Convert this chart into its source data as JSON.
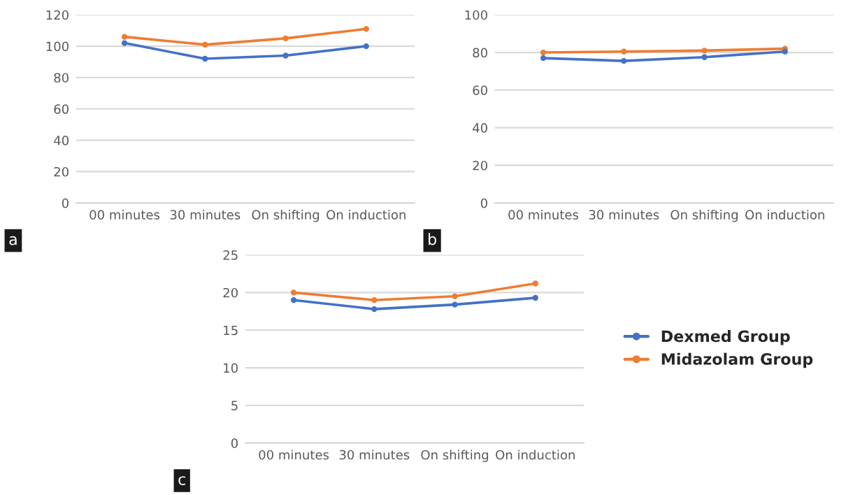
{
  "chart_data": [
    {
      "type": "line",
      "categories": [
        "00 minutes",
        "30 minutes",
        "On shifting",
        "On induction"
      ],
      "ylim": [
        0,
        120
      ],
      "yticks": [
        0,
        20,
        40,
        60,
        80,
        100,
        120
      ],
      "grid": "y",
      "marker": "circle",
      "legend": false,
      "annotations": [
        "a"
      ],
      "series": [
        {
          "color": "#4472c4",
          "values": [
            102,
            92,
            94,
            100
          ]
        },
        {
          "color": "#ed7d31",
          "values": [
            106,
            101,
            105,
            111
          ]
        }
      ]
    },
    {
      "type": "line",
      "categories": [
        "00 minutes",
        "30 minutes",
        "On shifting",
        "On induction"
      ],
      "ylim": [
        0,
        100
      ],
      "yticks": [
        0,
        20,
        40,
        60,
        80,
        100
      ],
      "grid": "y",
      "marker": "circle",
      "legend": false,
      "annotations": [
        "b"
      ],
      "series": [
        {
          "color": "#4472c4",
          "values": [
            77,
            75.5,
            77.5,
            80.5
          ]
        },
        {
          "color": "#ed7d31",
          "values": [
            80,
            80.5,
            81,
            82
          ]
        }
      ]
    },
    {
      "type": "line",
      "categories": [
        "00 minutes",
        "30 minutes",
        "On shifting",
        "On induction"
      ],
      "ylim": [
        0,
        25
      ],
      "yticks": [
        0,
        5,
        10,
        15,
        20,
        25
      ],
      "grid": "y",
      "marker": "circle",
      "legend": "right",
      "annotations": [
        "c"
      ],
      "series": [
        {
          "name": "Dexmed Group",
          "color": "#4472c4",
          "values": [
            19,
            17.8,
            18.4,
            19.3
          ]
        },
        {
          "name": "Midazolam Group",
          "color": "#ed7d31",
          "values": [
            20,
            19,
            19.5,
            21.2
          ]
        }
      ]
    }
  ]
}
